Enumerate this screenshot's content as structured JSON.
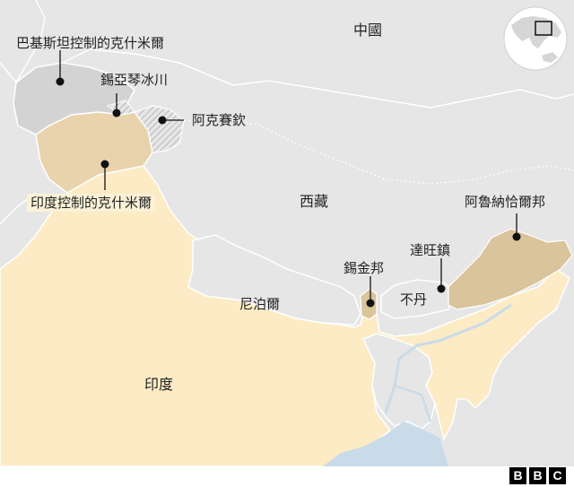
{
  "labels": {
    "china": "中國",
    "tibet": "西藏",
    "nepal": "尼泊爾",
    "bhutan": "不丹",
    "india": "印度",
    "pak_kashmir": "巴基斯坦控制的克什米爾",
    "siachen": "錫亞琴冰川",
    "aksai_chin": "阿克賽欽",
    "india_kashmir": "印度控制的克什米爾",
    "arunachal": "阿魯納恰爾邦",
    "tawang": "達旺鎮",
    "sikkim": "錫金邦"
  },
  "logo": {
    "letters": [
      "B",
      "B",
      "C"
    ]
  },
  "colors": {
    "land": "#e6e6e6",
    "india": "#fcebc5",
    "disputed": "#d9c49b",
    "kashmir_india": "#e8d3ad",
    "pakistan_kashmir": "#d3d3d3",
    "water": "#c9dbe9",
    "border": "#ffffff",
    "marker": "#111111"
  }
}
